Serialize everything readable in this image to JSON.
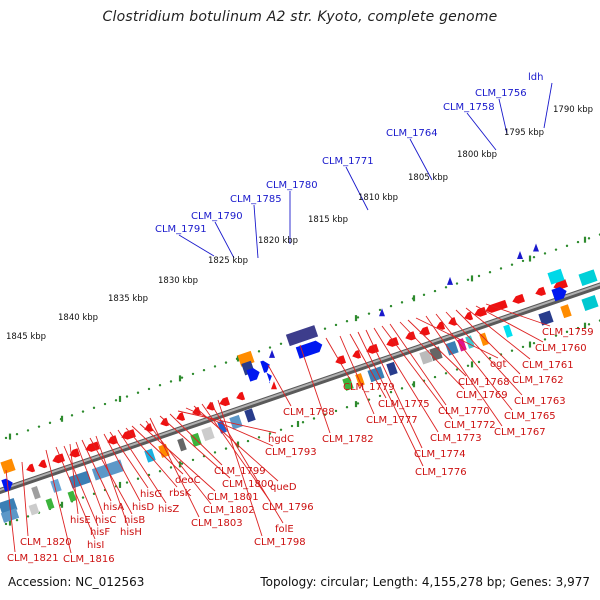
{
  "title": "Clostridium botulinum A2 str. Kyoto, complete genome",
  "footer": {
    "accession": "Accession: NC_012563",
    "summary": "Topology: circular; Length: 4,155,278 bp; Genes: 3,977"
  },
  "ruler_labels": [
    "1845 kbp",
    "1840 kbp",
    "1835 kbp",
    "1830 kbp",
    "1825 kbp",
    "1820 kbp",
    "1815 kbp",
    "1810 kbp",
    "1805 kbp",
    "1800 kbp",
    "1795 kbp",
    "1790 kbp"
  ],
  "forward_genes": [
    "CLM_1791",
    "CLM_1790",
    "CLM_1785",
    "CLM_1780",
    "CLM_1771",
    "CLM_1764",
    "CLM_1758",
    "CLM_1756",
    "ldh"
  ],
  "reverse_genes": [
    "CLM_1821",
    "CLM_1820",
    "CLM_1816",
    "hisI",
    "hisF",
    "hisE",
    "hisC",
    "hisA",
    "hisB",
    "hisH",
    "hisD",
    "hisG",
    "hisZ",
    "rbsK",
    "deoC",
    "CLM_1801",
    "CLM_1802",
    "CLM_1803",
    "CLM_1800",
    "CLM_1799",
    "hgdC",
    "CLM_1793",
    "queD",
    "CLM_1796",
    "folE",
    "CLM_1798",
    "CLM_1788",
    "CLM_1782",
    "CLM_1779",
    "CLM_1777",
    "CLM_1775",
    "CLM_1776",
    "CLM_1774",
    "CLM_1773",
    "CLM_1772",
    "CLM_1770",
    "CLM_1769",
    "CLM_1768",
    "ogt",
    "CLM_1767",
    "CLM_1765",
    "CLM_1763",
    "CLM_1762",
    "CLM_1761",
    "CLM_1760",
    "CLM_1759"
  ],
  "colors": {
    "forward_label": "#1a1acc",
    "reverse_label": "#cc1111",
    "backbone": "#8a8a8a",
    "ruler": "#2e8b2e"
  }
}
